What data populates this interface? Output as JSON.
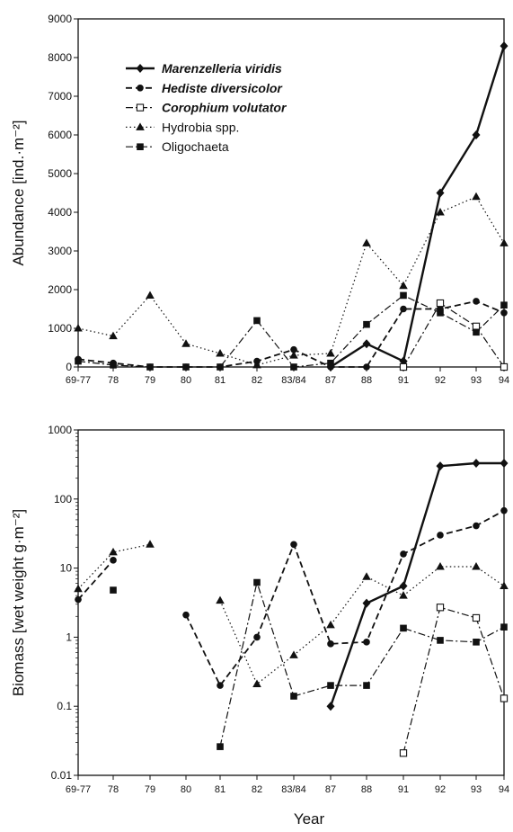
{
  "chart_data": [
    {
      "type": "line",
      "title": "",
      "xlabel": "",
      "ylabel": "Abundance  [ind.·m⁻²]",
      "categories": [
        "69-77",
        "78",
        "79",
        "80",
        "81",
        "82",
        "83/84",
        "87",
        "88",
        "91",
        "92",
        "93",
        "94"
      ],
      "ylim": [
        0,
        9000
      ],
      "yticks": [
        "0",
        "1000",
        "2000",
        "3000",
        "4000",
        "5000",
        "6000",
        "7000",
        "8000",
        "9000"
      ],
      "grid": false,
      "legend_position": "top-left",
      "series": [
        {
          "name": "Marenzelleria viridis",
          "style": "solid",
          "marker": "diamond-filled",
          "values": [
            null,
            null,
            null,
            null,
            null,
            null,
            null,
            0,
            600,
            150,
            4500,
            6000,
            8300
          ]
        },
        {
          "name": "Hediste diversicolor",
          "style": "dashed",
          "marker": "circle-filled",
          "values": [
            200,
            100,
            0,
            0,
            0,
            150,
            450,
            0,
            0,
            1500,
            1500,
            1700,
            1400
          ]
        },
        {
          "name": "Corophium volutator",
          "style": "dashdot",
          "marker": "square-open",
          "values": [
            null,
            null,
            null,
            null,
            null,
            null,
            null,
            null,
            null,
            0,
            1650,
            1050,
            0
          ]
        },
        {
          "name": "Hydrobia spp.",
          "style": "dotted",
          "marker": "triangle-filled",
          "values": [
            1000,
            800,
            1850,
            600,
            350,
            50,
            300,
            350,
            3200,
            2100,
            4000,
            4400,
            3200
          ]
        },
        {
          "name": "Oligochaeta",
          "style": "dashdot",
          "marker": "square-filled",
          "values": [
            150,
            50,
            0,
            0,
            0,
            1200,
            0,
            100,
            1100,
            1850,
            1400,
            900,
            1600
          ]
        }
      ]
    },
    {
      "type": "line",
      "title": "",
      "xlabel": "Year",
      "ylabel": "Biomass  [wet weight g·m⁻²]",
      "categories": [
        "69-77",
        "78",
        "79",
        "80",
        "81",
        "82",
        "83/84",
        "87",
        "88",
        "91",
        "92",
        "93",
        "94"
      ],
      "ylim": [
        0.01,
        1000
      ],
      "yscale": "log",
      "yticks": [
        "0.01",
        "0.1",
        "1",
        "10",
        "100",
        "1000"
      ],
      "grid": false,
      "series": [
        {
          "name": "Marenzelleria viridis",
          "style": "solid",
          "marker": "diamond-filled",
          "values": [
            null,
            null,
            null,
            null,
            null,
            null,
            null,
            0.1,
            3.1,
            5.5,
            300,
            330,
            330
          ]
        },
        {
          "name": "Hediste diversicolor",
          "style": "dashed",
          "marker": "circle-filled",
          "values": [
            3.5,
            13,
            null,
            2.1,
            0.2,
            1.0,
            22,
            0.8,
            0.85,
            16,
            30,
            41,
            68
          ]
        },
        {
          "name": "Corophium volutator",
          "style": "dashdot",
          "marker": "square-open",
          "values": [
            null,
            null,
            null,
            null,
            null,
            null,
            null,
            null,
            null,
            0.021,
            2.7,
            1.9,
            0.13
          ]
        },
        {
          "name": "Hydrobia spp.",
          "style": "dotted",
          "marker": "triangle-filled",
          "values": [
            5,
            17,
            22,
            null,
            3.4,
            0.21,
            0.55,
            1.5,
            7.5,
            4.0,
            10.5,
            10.5,
            5.5
          ]
        },
        {
          "name": "Oligochaeta",
          "style": "dashdot",
          "marker": "square-filled",
          "values": [
            null,
            4.8,
            null,
            null,
            0.026,
            6.2,
            0.14,
            0.2,
            0.2,
            1.35,
            0.9,
            0.85,
            1.4
          ]
        }
      ]
    }
  ]
}
